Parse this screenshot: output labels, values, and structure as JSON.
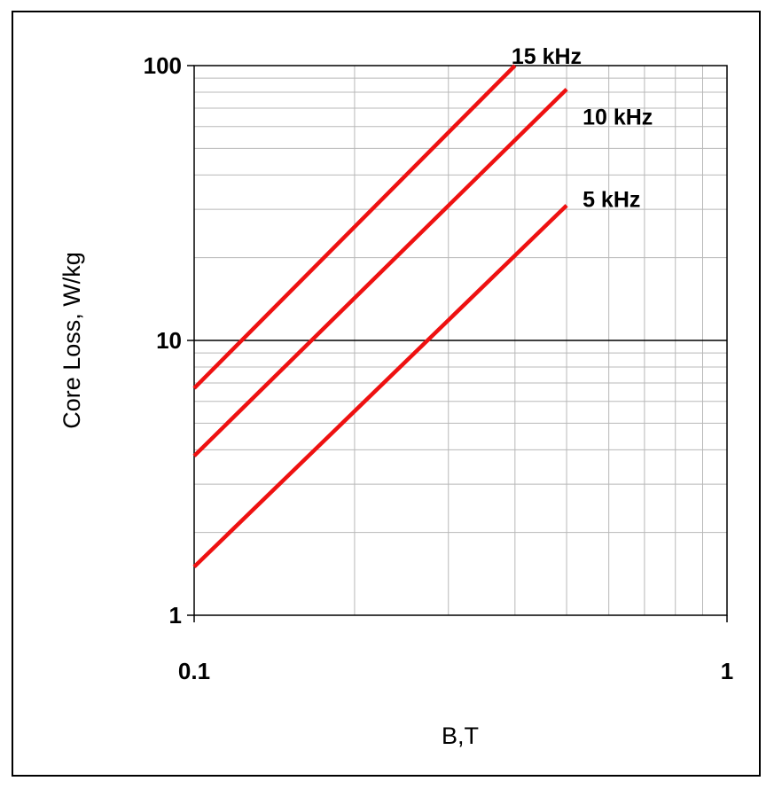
{
  "chart_data": {
    "type": "line",
    "title": "",
    "xlabel": "B,T",
    "ylabel": "Core Loss, W/kg",
    "x_scale": "log",
    "y_scale": "log",
    "xlim": [
      0.1,
      1
    ],
    "ylim": [
      1,
      100
    ],
    "x_ticks": [
      {
        "value": 0.1,
        "label": "0.1"
      },
      {
        "value": 1,
        "label": "1"
      }
    ],
    "y_ticks": [
      {
        "value": 1,
        "label": "1"
      },
      {
        "value": 10,
        "label": "10"
      },
      {
        "value": 100,
        "label": "100"
      }
    ],
    "grid": true,
    "line_color": "#ee1111",
    "series": [
      {
        "name": "15 kHz",
        "x": [
          0.1,
          0.4
        ],
        "y": [
          6.7,
          100
        ]
      },
      {
        "name": "10 kHz",
        "x": [
          0.1,
          0.5
        ],
        "y": [
          3.8,
          82
        ]
      },
      {
        "name": "5 kHz",
        "x": [
          0.1,
          0.5
        ],
        "y": [
          1.5,
          31
        ]
      }
    ]
  }
}
